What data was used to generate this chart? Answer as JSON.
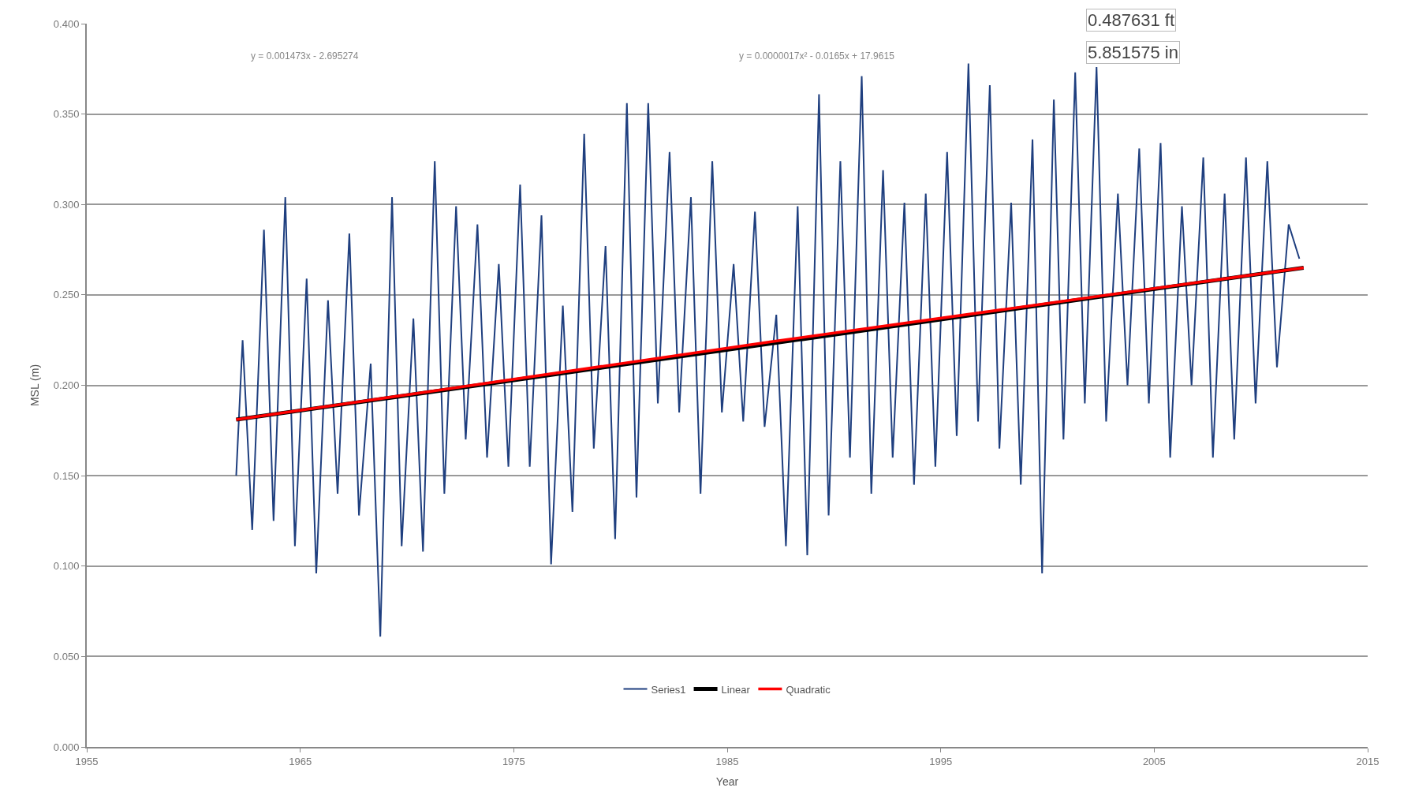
{
  "chart_data": {
    "type": "line",
    "xlabel": "Year",
    "ylabel": "MSL (m)",
    "xlim": [
      1955,
      2015
    ],
    "xticks": [
      1955,
      1965,
      1975,
      1985,
      1995,
      2005,
      2015
    ],
    "ylim": [
      0,
      0.4
    ],
    "yticks": [
      {
        "value": 0,
        "label": "0.000"
      },
      {
        "value": 0.05,
        "label": "0.050"
      },
      {
        "value": 0.1,
        "label": "0.100"
      },
      {
        "value": 0.15,
        "label": "0.150"
      },
      {
        "value": 0.2,
        "label": "0.200"
      },
      {
        "value": 0.25,
        "label": "0.250"
      },
      {
        "value": 0.3,
        "label": "0.300"
      },
      {
        "value": 0.35,
        "label": "0.350"
      },
      {
        "value": 0.4,
        "label": "0.400"
      }
    ],
    "grid": "y",
    "legend": "bottom",
    "marker": "none",
    "line_style": "solid",
    "annotations": [
      "y = 0.001473x - 2.695274",
      "y = 0.0000017x² - 0.0165x + 17.9615",
      "0.487631 ft",
      "5.851575 in"
    ],
    "series": [
      {
        "name": "Series1",
        "color": "#1f3f7f",
        "x": [
          1962.0,
          1962.3,
          1962.75,
          1963.3,
          1963.75,
          1964.3,
          1964.75,
          1965.3,
          1965.75,
          1966.3,
          1966.75,
          1967.3,
          1967.75,
          1968.3,
          1968.75,
          1969.3,
          1969.75,
          1970.3,
          1970.75,
          1971.3,
          1971.75,
          1972.3,
          1972.75,
          1973.3,
          1973.75,
          1974.3,
          1974.75,
          1975.3,
          1975.75,
          1976.3,
          1976.75,
          1977.3,
          1977.75,
          1978.3,
          1978.75,
          1979.3,
          1979.75,
          1980.3,
          1980.75,
          1981.3,
          1981.75,
          1982.3,
          1982.75,
          1983.3,
          1983.75,
          1984.3,
          1984.75,
          1985.3,
          1985.75,
          1986.3,
          1986.75,
          1987.3,
          1987.75,
          1988.3,
          1988.75,
          1989.3,
          1989.75,
          1990.3,
          1990.75,
          1991.3,
          1991.75,
          1992.3,
          1992.75,
          1993.3,
          1993.75,
          1994.3,
          1994.75,
          1995.3,
          1995.75,
          1996.3,
          1996.75,
          1997.3,
          1997.75,
          1998.3,
          1998.75,
          1999.3,
          1999.75,
          2000.3,
          2000.75,
          2001.3,
          2001.75,
          2002.3,
          2002.75,
          2003.3,
          2003.75,
          2004.3,
          2004.75,
          2005.3,
          2005.75,
          2006.3,
          2006.75,
          2007.3,
          2007.75,
          2008.3,
          2008.75,
          2009.3,
          2009.75,
          2010.3,
          2010.75,
          2011.3,
          2011.8
        ],
        "values": [
          0.15,
          0.225,
          0.12,
          0.286,
          0.125,
          0.304,
          0.111,
          0.259,
          0.096,
          0.247,
          0.14,
          0.284,
          0.128,
          0.212,
          0.061,
          0.304,
          0.111,
          0.237,
          0.108,
          0.324,
          0.14,
          0.299,
          0.17,
          0.289,
          0.16,
          0.267,
          0.155,
          0.311,
          0.155,
          0.294,
          0.101,
          0.244,
          0.13,
          0.339,
          0.165,
          0.277,
          0.115,
          0.356,
          0.138,
          0.356,
          0.19,
          0.329,
          0.185,
          0.304,
          0.14,
          0.324,
          0.185,
          0.267,
          0.18,
          0.296,
          0.177,
          0.239,
          0.111,
          0.299,
          0.106,
          0.361,
          0.128,
          0.324,
          0.16,
          0.371,
          0.14,
          0.319,
          0.16,
          0.301,
          0.145,
          0.306,
          0.155,
          0.329,
          0.172,
          0.378,
          0.18,
          0.366,
          0.165,
          0.301,
          0.145,
          0.336,
          0.096,
          0.358,
          0.17,
          0.373,
          0.19,
          0.376,
          0.18,
          0.306,
          0.2,
          0.331,
          0.19,
          0.334,
          0.16,
          0.299,
          0.2,
          0.326,
          0.16,
          0.306,
          0.17,
          0.326,
          0.19,
          0.324,
          0.21,
          0.289,
          0.27
        ]
      },
      {
        "name": "Linear",
        "color": "#000000",
        "x": [
          1962.0,
          2012.0
        ],
        "values": [
          0.181,
          0.265
        ]
      },
      {
        "name": "Quadratic",
        "color": "#ff0000",
        "x": [
          1962.0,
          1987.0,
          2012.0
        ],
        "values": [
          0.181,
          0.224,
          0.265
        ]
      }
    ]
  }
}
